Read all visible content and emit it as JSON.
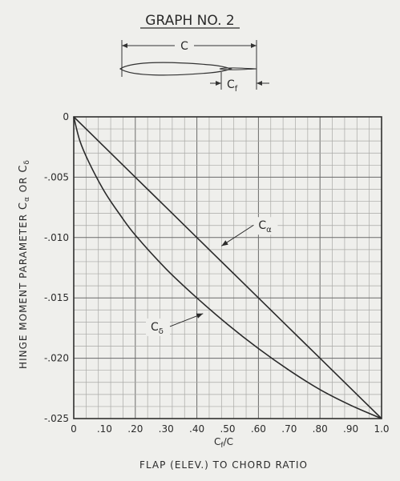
{
  "title": "GRAPH NO. 2",
  "sketch": {
    "chord_label": "C",
    "flap_label": "C",
    "flap_subscript": "f"
  },
  "chart_data": {
    "type": "line",
    "title": "GRAPH NO. 2",
    "xlabel": "FLAP (ELEV.) TO CHORD RATIO",
    "xlabel_formula": {
      "base": "C",
      "sub": "f",
      "tail": "/C"
    },
    "ylabel": "HINGE MOMENT PARAMETER",
    "ylabel_symbols": {
      "first": "C",
      "first_sub": "α",
      "joiner": "OR",
      "second": "C",
      "second_sub": "δ"
    },
    "xlim": [
      0,
      1.0
    ],
    "ylim": [
      -0.025,
      0
    ],
    "grid": true,
    "x_ticks": [
      {
        "v": 0,
        "label": "0"
      },
      {
        "v": 0.1,
        "label": ".10"
      },
      {
        "v": 0.2,
        "label": ".20"
      },
      {
        "v": 0.3,
        "label": ".30"
      },
      {
        "v": 0.4,
        "label": ".40"
      },
      {
        "v": 0.5,
        "label": ".50"
      },
      {
        "v": 0.6,
        "label": ".60"
      },
      {
        "v": 0.7,
        "label": ".70"
      },
      {
        "v": 0.8,
        "label": ".80"
      },
      {
        "v": 0.9,
        "label": ".90"
      },
      {
        "v": 1.0,
        "label": "1.0"
      }
    ],
    "y_ticks": [
      {
        "v": 0,
        "label": "0"
      },
      {
        "v": -0.005,
        "label": "-.005"
      },
      {
        "v": -0.01,
        "label": "-.010"
      },
      {
        "v": -0.015,
        "label": "-.015"
      },
      {
        "v": -0.02,
        "label": "-.020"
      },
      {
        "v": -0.025,
        "label": "-.025"
      }
    ],
    "series": [
      {
        "name": "C_α",
        "label_base": "C",
        "label_sub": "α",
        "label_at": [
          0.6,
          -0.0093
        ],
        "arrow_to": [
          0.48,
          -0.0107
        ],
        "x": [
          0,
          0.1,
          0.2,
          0.3,
          0.4,
          0.5,
          0.6,
          0.7,
          0.8,
          0.9,
          1.0
        ],
        "y": [
          0,
          -0.0025,
          -0.005,
          -0.0075,
          -0.01,
          -0.0125,
          -0.015,
          -0.0175,
          -0.02,
          -0.0225,
          -0.025
        ]
      },
      {
        "name": "C_δ",
        "label_base": "C",
        "label_sub": "δ",
        "label_at": [
          0.25,
          -0.0177
        ],
        "arrow_to": [
          0.42,
          -0.0163
        ],
        "x": [
          0,
          0.02,
          0.05,
          0.1,
          0.15,
          0.2,
          0.3,
          0.4,
          0.5,
          0.6,
          0.7,
          0.8,
          0.9,
          1.0
        ],
        "y": [
          0,
          -0.002,
          -0.0038,
          -0.0062,
          -0.0081,
          -0.0098,
          -0.0126,
          -0.015,
          -0.0172,
          -0.0192,
          -0.021,
          -0.0226,
          -0.0239,
          -0.025
        ]
      }
    ]
  }
}
